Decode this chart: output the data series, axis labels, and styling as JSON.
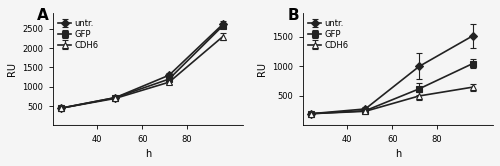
{
  "A": {
    "label": "A",
    "x": [
      24,
      48,
      72,
      96
    ],
    "series": {
      "untr.": {
        "y": [
          450,
          720,
          1300,
          2620
        ],
        "yerr": [
          20,
          30,
          60,
          80
        ],
        "marker": "D",
        "color": "#222222"
      },
      "GFP": {
        "y": [
          450,
          720,
          1200,
          2580
        ],
        "yerr": [
          20,
          30,
          50,
          70
        ],
        "marker": "s",
        "color": "#222222"
      },
      "CDH6": {
        "y": [
          450,
          700,
          1120,
          2300
        ],
        "yerr": [
          20,
          25,
          40,
          80
        ],
        "marker": "^",
        "color": "#222222"
      }
    },
    "ylabel": "RU",
    "xlabel": "h",
    "ylim": [
      0,
      2900
    ],
    "yticks": [
      500,
      1000,
      1500,
      2000,
      2500
    ],
    "xlim": [
      20,
      105
    ],
    "xticks": [
      40,
      60,
      80
    ]
  },
  "B": {
    "label": "B",
    "x": [
      24,
      48,
      72,
      96
    ],
    "series": {
      "untr.": {
        "y": [
          200,
          280,
          1000,
          1520
        ],
        "yerr": [
          15,
          30,
          220,
          200
        ],
        "marker": "D",
        "color": "#222222"
      },
      "GFP": {
        "y": [
          200,
          250,
          620,
          1050
        ],
        "yerr": [
          15,
          30,
          100,
          80
        ],
        "marker": "s",
        "color": "#222222"
      },
      "CDH6": {
        "y": [
          200,
          240,
          500,
          650
        ],
        "yerr": [
          15,
          25,
          60,
          60
        ],
        "marker": "^",
        "color": "#222222"
      }
    },
    "ylabel": "RU",
    "xlabel": "h",
    "ylim": [
      0,
      1900
    ],
    "yticks": [
      500,
      1000,
      1500
    ],
    "xlim": [
      20,
      105
    ],
    "xticks": [
      40,
      60,
      80
    ]
  },
  "bg_color": "#f0f0f0",
  "linewidth": 1.2,
  "markersize": 4,
  "fontsize_label": 7,
  "fontsize_tick": 6,
  "fontsize_legend": 6,
  "fontsize_panel_label": 11
}
